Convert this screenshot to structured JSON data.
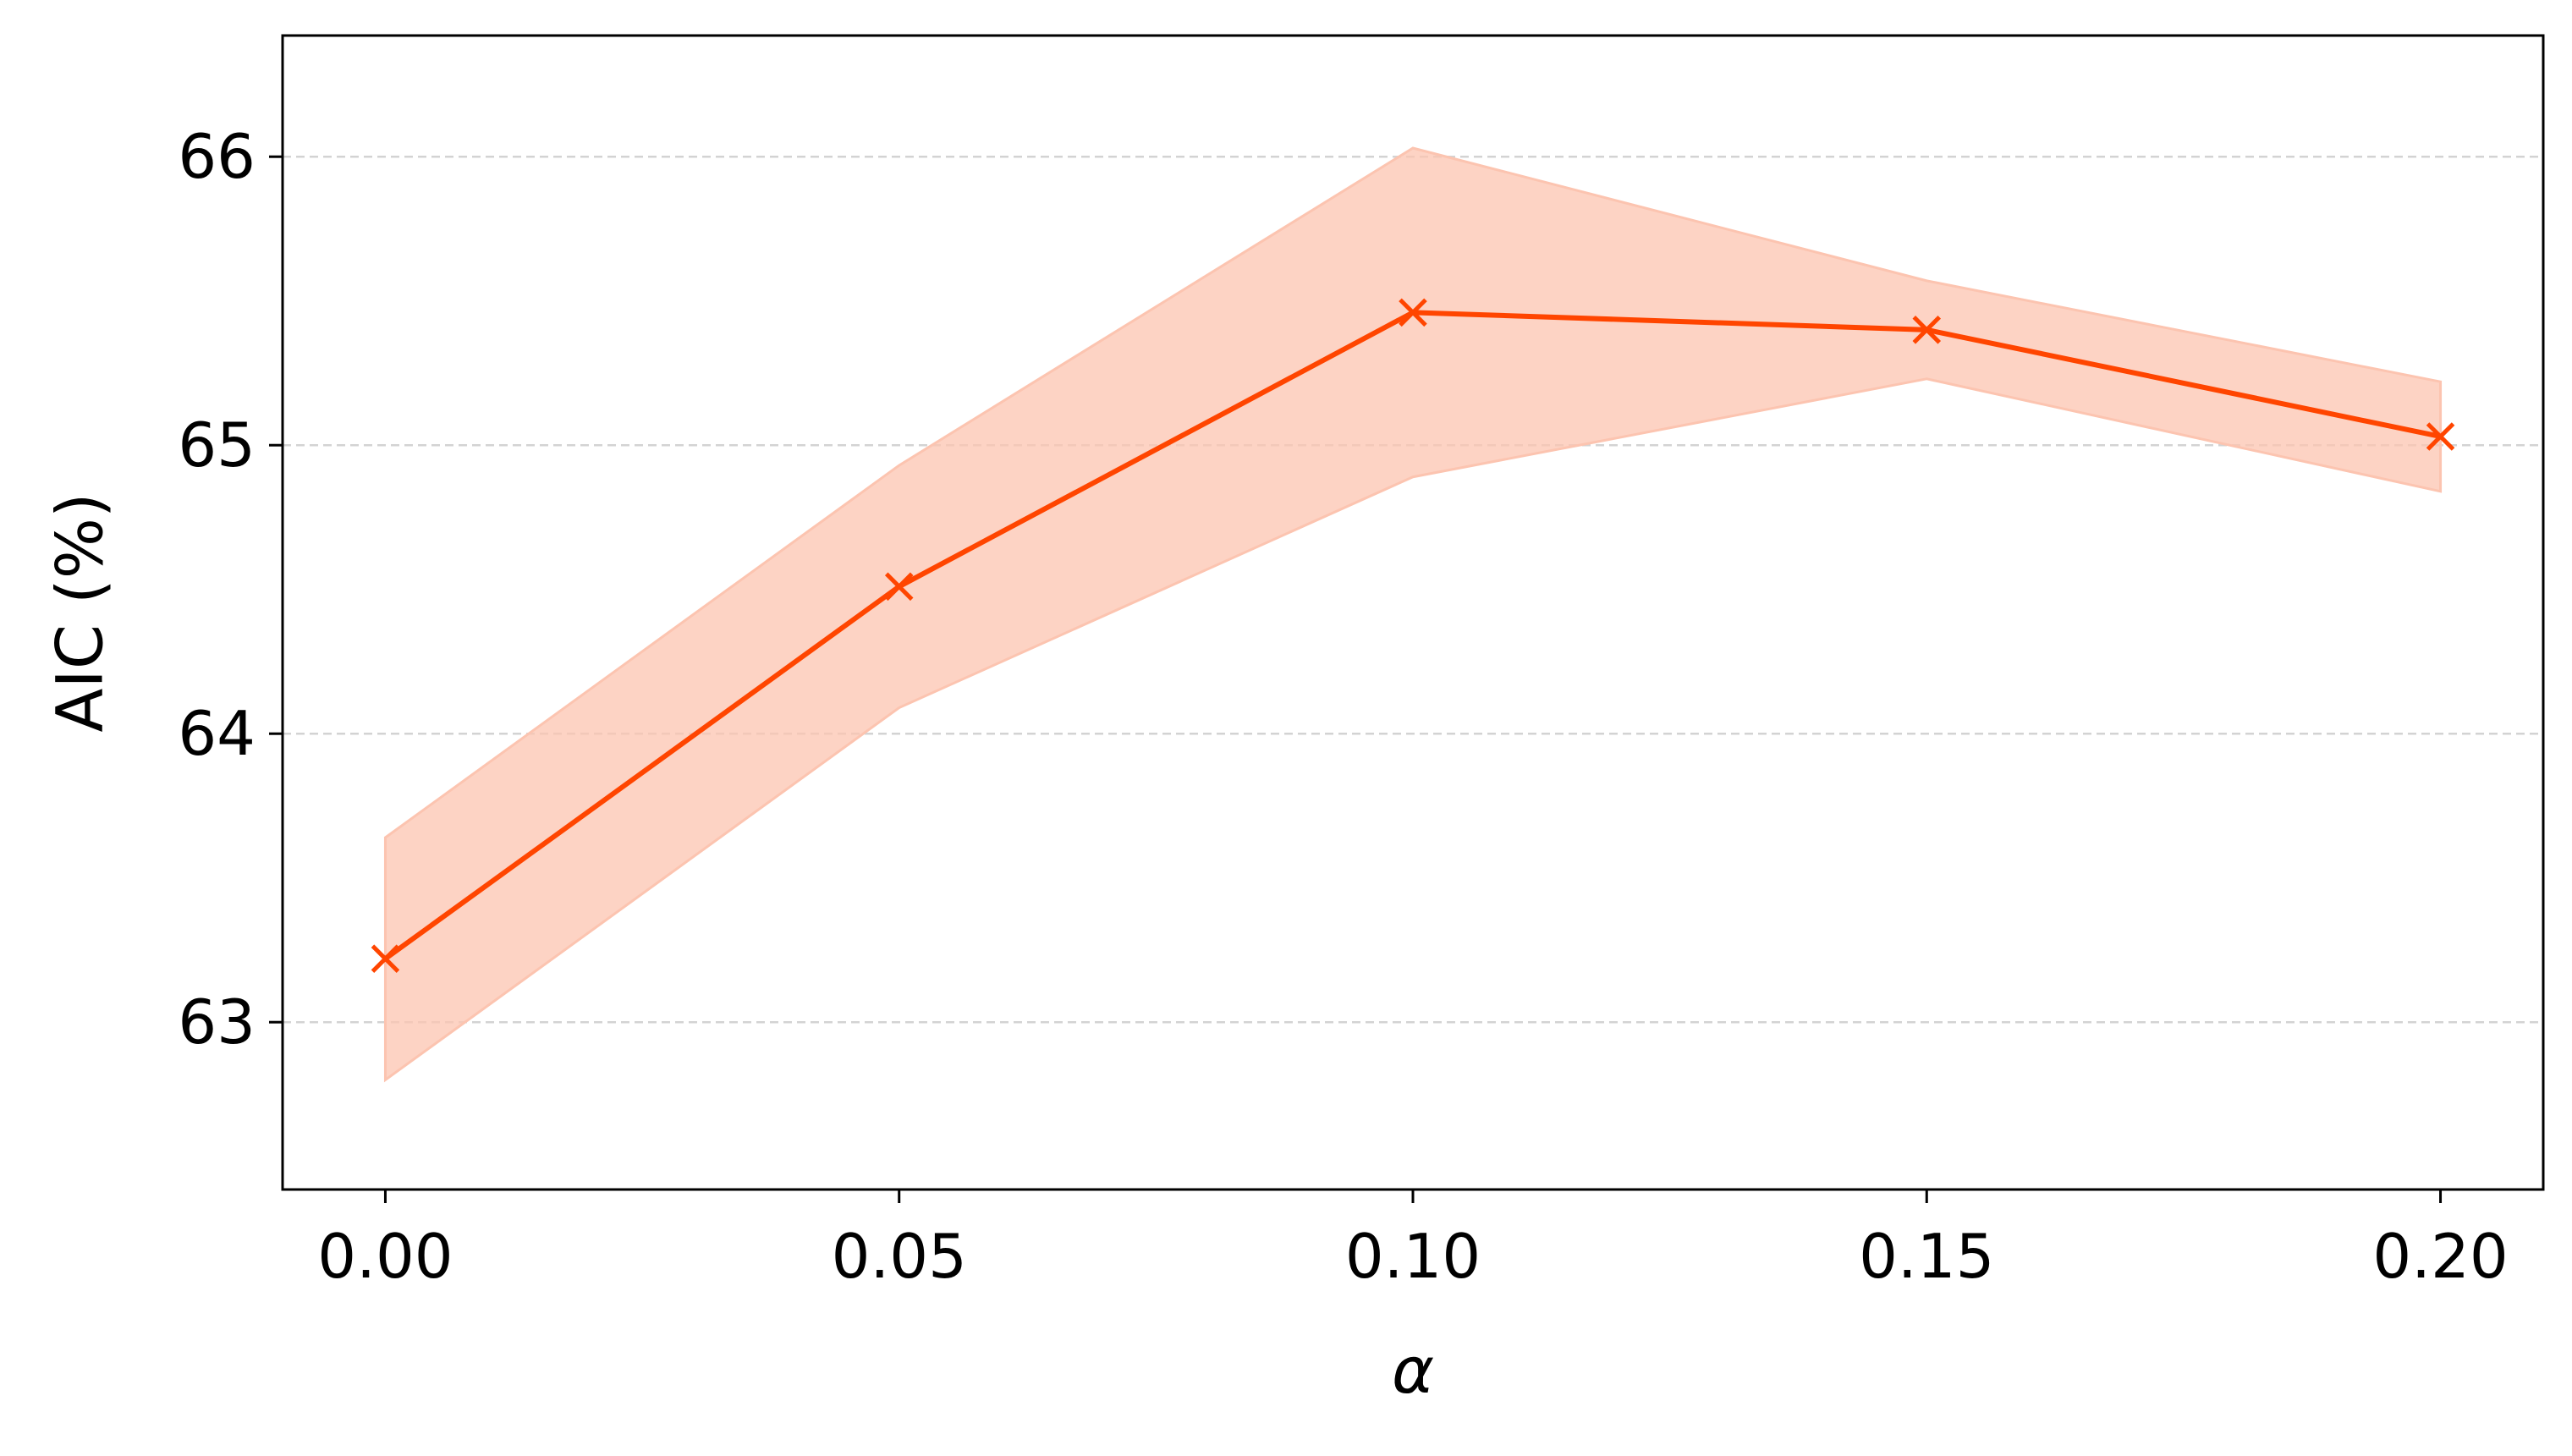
{
  "chart_data": {
    "type": "line",
    "title": "",
    "xlabel": "α",
    "ylabel": "AIC (%)",
    "x": [
      0.0,
      0.05,
      0.1,
      0.15,
      0.2
    ],
    "x_tick_labels": [
      "0.00",
      "0.05",
      "0.10",
      "0.15",
      "0.20"
    ],
    "y_ticks": [
      63,
      64,
      65,
      66
    ],
    "y_tick_labels": [
      "63",
      "64",
      "65",
      "66"
    ],
    "xlim": [
      -0.01,
      0.21
    ],
    "ylim": [
      62.42,
      66.42
    ],
    "grid": "horizontal dashed",
    "legend": "none",
    "series": [
      {
        "values": [
          63.22,
          64.51,
          65.46,
          65.4,
          65.03
        ],
        "lower": [
          62.8,
          64.09,
          64.89,
          65.23,
          64.84
        ],
        "upper": [
          63.64,
          64.93,
          66.03,
          65.57,
          65.22
        ],
        "marker": "x",
        "color": "#ff4500",
        "band_color": "#fcc4b0"
      }
    ]
  }
}
